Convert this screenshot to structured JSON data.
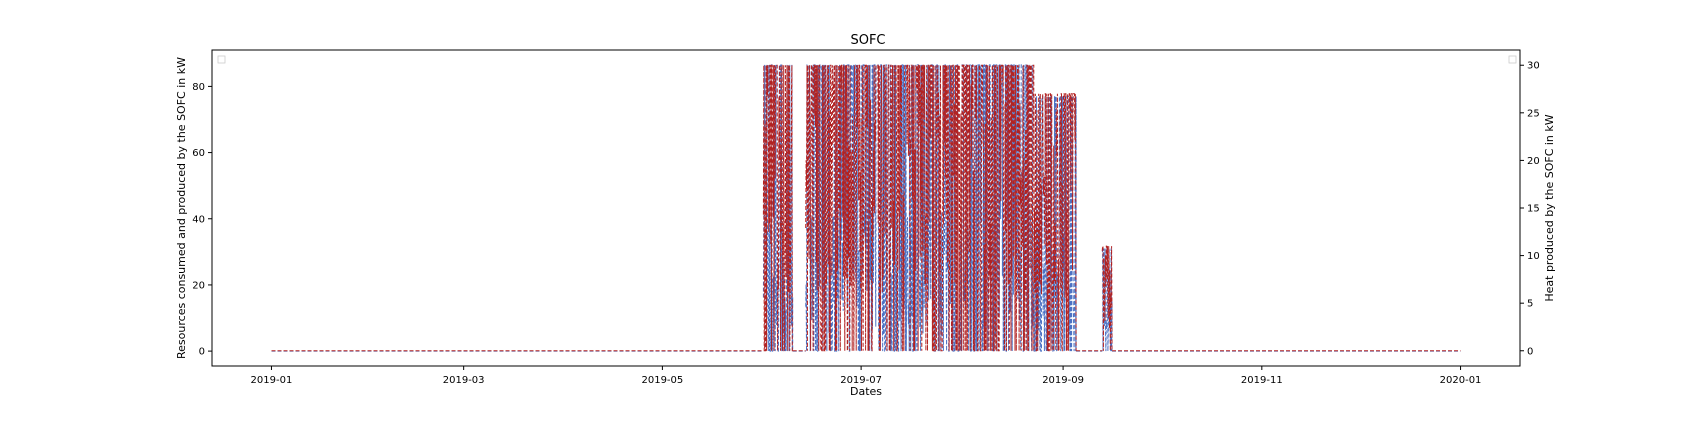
{
  "chart_data": {
    "type": "line",
    "title": "SOFC",
    "xlabel": "Dates",
    "ylabel_left": "Resources consumed and produced by the SOFC in kW",
    "ylabel_right": "Heat produced by the SOFC in kW",
    "x_range": [
      "2019-01-01",
      "2020-01-01"
    ],
    "x_ticks": [
      "2019-01",
      "2019-03",
      "2019-05",
      "2019-07",
      "2019-09",
      "2019-11",
      "2020-01"
    ],
    "ylim_left": [
      -4.5,
      91
    ],
    "yticks_left": [
      0,
      20,
      40,
      60,
      80
    ],
    "ylim_right": [
      -1.6,
      31.6
    ],
    "yticks_right": [
      0,
      5,
      10,
      15,
      20,
      25,
      30
    ],
    "grid": false,
    "legend_left": "top-left (empty)",
    "legend_right": "top-right (empty)",
    "line_style": "dashed",
    "colors": {
      "left_series": "#4c72c4",
      "right_series": "#b22222"
    },
    "active_period": [
      "2019-06-01",
      "2019-09-16"
    ],
    "active_blocks": [
      {
        "start": "2019-06-01",
        "end": "2019-06-10",
        "left_max": 86.5,
        "right_max": 30
      },
      {
        "start": "2019-06-14",
        "end": "2019-08-23",
        "left_max": 86.5,
        "right_max": 30
      },
      {
        "start": "2019-08-23",
        "end": "2019-09-05",
        "left_max": 77,
        "right_max": 27
      },
      {
        "start": "2019-09-13",
        "end": "2019-09-16",
        "left_max": 31,
        "right_max": 11
      }
    ],
    "baseline_value": 0
  }
}
